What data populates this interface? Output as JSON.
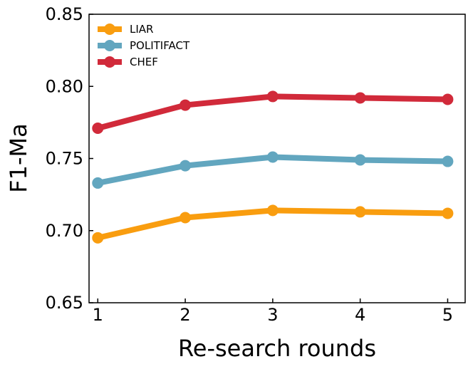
{
  "chart_data": {
    "type": "line",
    "x": [
      1,
      2,
      3,
      4,
      5
    ],
    "xlabel": "Re-search rounds",
    "ylabel": "F1-Ma",
    "ylim": [
      0.65,
      0.85
    ],
    "yticks": [
      "0.65",
      "0.70",
      "0.75",
      "0.80",
      "0.85"
    ],
    "xticks": [
      "1",
      "2",
      "3",
      "4",
      "5"
    ],
    "grid": false,
    "legend_position": "top-left",
    "series": [
      {
        "name": "LIAR",
        "color": "#f99d0f",
        "values": [
          0.695,
          0.709,
          0.714,
          0.713,
          0.712
        ]
      },
      {
        "name": "POLITIFACT",
        "color": "#62a6bf",
        "values": [
          0.733,
          0.745,
          0.751,
          0.749,
          0.748
        ]
      },
      {
        "name": "CHEF",
        "color": "#d12a3a",
        "values": [
          0.771,
          0.787,
          0.793,
          0.792,
          0.791
        ]
      }
    ]
  }
}
